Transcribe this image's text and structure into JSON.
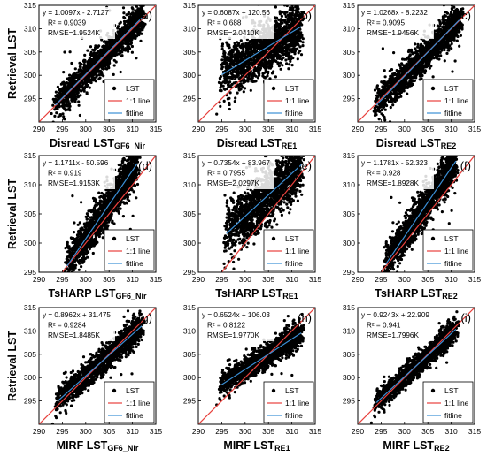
{
  "figure": {
    "legend_labels": [
      "LST",
      "1:1 line",
      "fitline"
    ],
    "colors": {
      "points": "#000000",
      "one_to_one": "#e8403c",
      "fitline": "#3a8fd6",
      "frame": "#000000"
    }
  },
  "chart_data": [
    {
      "type": "scatter",
      "panel": "(a)",
      "equation": "y = 1.0097x - 2.7127",
      "r2": "R² = 0.9039",
      "rmse": "RMSE=1.9524K",
      "slope": 1.0097,
      "intercept": -2.7127,
      "ylabel": "Retrieval LST",
      "xlabel_main": "Disread  LST",
      "xlabel_sub": "GF6_Nir",
      "xlim": [
        290,
        315
      ],
      "ylim": [
        290,
        315
      ],
      "xticks": [
        "290",
        "295",
        "300",
        "305",
        "310",
        "315"
      ],
      "yticks": [
        "295",
        "300",
        "305",
        "310",
        "315"
      ],
      "cloud": {
        "x_range": [
          293.5,
          312
        ],
        "spread": 1.6,
        "outliers": 0.5
      },
      "legend_position": "bottom-right"
    },
    {
      "type": "scatter",
      "panel": "(b)",
      "equation": "y = 0.6087x + 120.56",
      "r2": "R² = 0.688",
      "rmse": "RMSE=2.0410K",
      "slope": 0.6087,
      "intercept": 120.56,
      "ylabel": "",
      "xlabel_main": "Disread  LST",
      "xlabel_sub": "RE1",
      "xlim": [
        290,
        315
      ],
      "ylim": [
        290,
        315
      ],
      "xticks": [
        "290",
        "295",
        "300",
        "305",
        "310",
        "315"
      ],
      "yticks": [
        "295",
        "300",
        "305",
        "310",
        "315"
      ],
      "cloud": {
        "x_range": [
          295,
          312
        ],
        "spread": 2.8,
        "outliers": 0.7
      },
      "legend_position": "bottom-right"
    },
    {
      "type": "scatter",
      "panel": "(c)",
      "equation": "y = 1.0268x - 8.2232",
      "r2": "R² = 0.9095",
      "rmse": "RMSE=1.9456K",
      "slope": 1.0268,
      "intercept": -8.2232,
      "ylabel": "",
      "xlabel_main": "Disread  LST",
      "xlabel_sub": "RE2",
      "xlim": [
        290,
        315
      ],
      "ylim": [
        290,
        315
      ],
      "xticks": [
        "290",
        "295",
        "300",
        "305",
        "310",
        "315"
      ],
      "yticks": [
        "295",
        "300",
        "305",
        "310",
        "315"
      ],
      "cloud": {
        "x_range": [
          294,
          312
        ],
        "spread": 1.7,
        "outliers": 0.5
      },
      "legend_position": "bottom-right"
    },
    {
      "type": "scatter",
      "panel": "(d)",
      "equation": "y = 1.1711x - 50.596",
      "r2": "R² = 0.919",
      "rmse": "RMSE=1.9153K",
      "slope": 1.1711,
      "intercept": -50.596,
      "ylabel": "Retrieval LST",
      "xlabel_main": "TsHARP  LST",
      "xlabel_sub": "GF6_Nir",
      "xlim": [
        290,
        315
      ],
      "ylim": [
        295,
        315
      ],
      "xticks": [
        "290",
        "295",
        "300",
        "305",
        "310",
        "315"
      ],
      "yticks": [
        "295",
        "300",
        "305",
        "310",
        "315"
      ],
      "cloud": {
        "x_range": [
          296,
          311
        ],
        "spread": 1.7,
        "outliers": 0.5
      },
      "legend_position": "bottom-right"
    },
    {
      "type": "scatter",
      "panel": "(e)",
      "equation": "y = 0.7354x + 83.967",
      "r2": "R² = 0.7955",
      "rmse": "RMSE=2.0297K",
      "slope": 0.7354,
      "intercept": 83.967,
      "ylabel": "",
      "xlabel_main": "TsHARP  LST",
      "xlabel_sub": "RE1",
      "xlim": [
        290,
        315
      ],
      "ylim": [
        295,
        315
      ],
      "xticks": [
        "290",
        "295",
        "300",
        "305",
        "310",
        "315"
      ],
      "yticks": [
        "295",
        "300",
        "305",
        "310",
        "315"
      ],
      "cloud": {
        "x_range": [
          296,
          312
        ],
        "spread": 2.4,
        "outliers": 0.7
      },
      "legend_position": "bottom-right"
    },
    {
      "type": "scatter",
      "panel": "(f)",
      "equation": "y = 1.1781x - 52.323",
      "r2": "R² = 0.928",
      "rmse": "RMSE=1.8928K",
      "slope": 1.1781,
      "intercept": -52.323,
      "ylabel": "",
      "xlabel_main": "TsHARP  LST",
      "xlabel_sub": "RE2",
      "xlim": [
        290,
        315
      ],
      "ylim": [
        295,
        315
      ],
      "xticks": [
        "290",
        "295",
        "300",
        "305",
        "310",
        "315"
      ],
      "yticks": [
        "295",
        "300",
        "305",
        "310",
        "315"
      ],
      "cloud": {
        "x_range": [
          296,
          311
        ],
        "spread": 1.6,
        "outliers": 0.5
      },
      "legend_position": "bottom-right"
    },
    {
      "type": "scatter",
      "panel": "(g)",
      "equation": "y = 0.8962x + 31.475",
      "r2": "R² = 0.9284",
      "rmse": "RMSE=1.8485K",
      "slope": 0.8962,
      "intercept": 31.475,
      "ylabel": "Retrieval LST",
      "xlabel_main": "MIRF  LST",
      "xlabel_sub": "GF6_Nir",
      "xlim": [
        290,
        315
      ],
      "ylim": [
        290,
        315
      ],
      "xticks": [
        "290",
        "295",
        "300",
        "305",
        "310",
        "315"
      ],
      "yticks": [
        "295",
        "300",
        "305",
        "310",
        "315"
      ],
      "cloud": {
        "x_range": [
          294,
          312
        ],
        "spread": 1.4,
        "outliers": 0.3
      },
      "legend_position": "bottom-right"
    },
    {
      "type": "scatter",
      "panel": "(h)",
      "equation": "y = 0.6524x + 106.03",
      "r2": "R² = 0.8122",
      "rmse": "RMSE=1.9770K",
      "slope": 0.6524,
      "intercept": 106.03,
      "ylabel": "",
      "xlabel_main": "MIRF  LST",
      "xlabel_sub": "RE1",
      "xlim": [
        290,
        315
      ],
      "ylim": [
        290,
        315
      ],
      "xticks": [
        "290",
        "295",
        "300",
        "305",
        "310",
        "315"
      ],
      "yticks": [
        "295",
        "300",
        "305",
        "310",
        "315"
      ],
      "cloud": {
        "x_range": [
          295,
          312
        ],
        "spread": 1.3,
        "outliers": 0.3
      },
      "legend_position": "bottom-right"
    },
    {
      "type": "scatter",
      "panel": "(i)",
      "equation": "y = 0.9243x + 22.909",
      "r2": "R² = 0.941",
      "rmse": "RMSE=1.7996K",
      "slope": 0.9243,
      "intercept": 22.909,
      "ylabel": "",
      "xlabel_main": "MIRF  LST",
      "xlabel_sub": "RE2",
      "xlim": [
        290,
        315
      ],
      "ylim": [
        290,
        315
      ],
      "xticks": [
        "290",
        "295",
        "300",
        "305",
        "310",
        "315"
      ],
      "yticks": [
        "295",
        "300",
        "305",
        "310",
        "315"
      ],
      "cloud": {
        "x_range": [
          294,
          311
        ],
        "spread": 1.2,
        "outliers": 0.2
      },
      "legend_position": "bottom-right"
    }
  ]
}
